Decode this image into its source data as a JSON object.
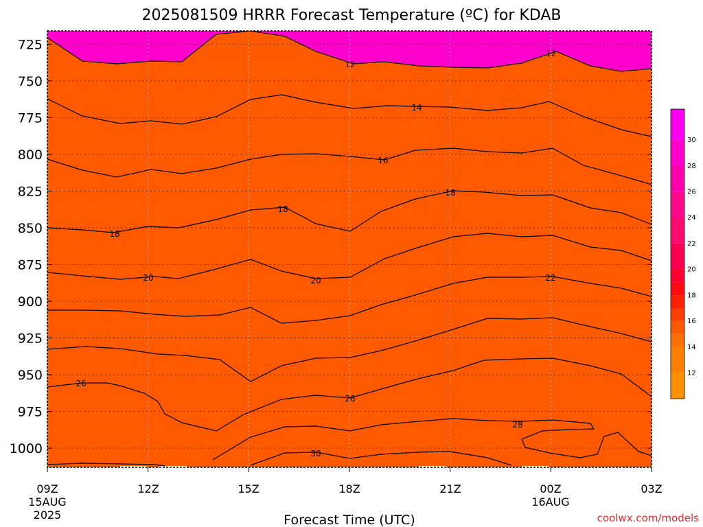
{
  "title": "2025081509 HRRR Forecast Temperature (ºC) for KDAB",
  "xlabel": "Forecast Time (UTC)",
  "credit": "coolwx.com/models",
  "colors": {
    "ground": "#a0603a",
    "contour": "#000000",
    "grid": "#b8b8b8",
    "credit": "#e4292b"
  },
  "chart_data": {
    "type": "heatmap",
    "variable": "Temperature",
    "units": "ºC",
    "y_axis": {
      "kind": "pressure-hPa",
      "reversed": true,
      "ylim": [
        1013,
        716
      ],
      "ticks": [
        "725",
        "750",
        "775",
        "800",
        "825",
        "850",
        "875",
        "900",
        "925",
        "950",
        "975",
        "1000"
      ]
    },
    "x_axis": {
      "kind": "forecast-hour",
      "xlim": [
        "2025-08-15T09Z",
        "2025-08-16T03Z"
      ],
      "ticks": [
        {
          "label": "09Z",
          "sub": [
            "15AUG",
            "2025"
          ]
        },
        {
          "label": "12Z",
          "sub": []
        },
        {
          "label": "15Z",
          "sub": []
        },
        {
          "label": "18Z",
          "sub": []
        },
        {
          "label": "21Z",
          "sub": []
        },
        {
          "label": "00Z",
          "sub": [
            "16AUG"
          ]
        },
        {
          "label": "03Z",
          "sub": []
        }
      ]
    },
    "grid": true,
    "colorbar": {
      "placement": "right",
      "labels": [
        "12",
        "14",
        "16",
        "18",
        "20",
        "22",
        "24",
        "26",
        "28",
        "30"
      ],
      "bands": [
        {
          "color": "#ff9000"
        },
        {
          "color": "#ff8000"
        },
        {
          "color": "#ff6f00"
        },
        {
          "color": "#ff5a00"
        },
        {
          "color": "#ff4000"
        },
        {
          "color": "#ff2200"
        },
        {
          "color": "#ff0a10"
        },
        {
          "color": "#ff0030"
        },
        {
          "color": "#fc0052"
        },
        {
          "color": "#fd0a6e"
        },
        {
          "color": "#ff0a8c"
        },
        {
          "color": "#ff00ac"
        },
        {
          "color": "#ff00cc"
        },
        {
          "color": "#ff00f0"
        }
      ]
    },
    "contour_labels": [
      "12",
      "12",
      "14",
      "16",
      "18",
      "18",
      "18",
      "20",
      "20",
      "22",
      "26",
      "26",
      "28",
      "30"
    ]
  }
}
